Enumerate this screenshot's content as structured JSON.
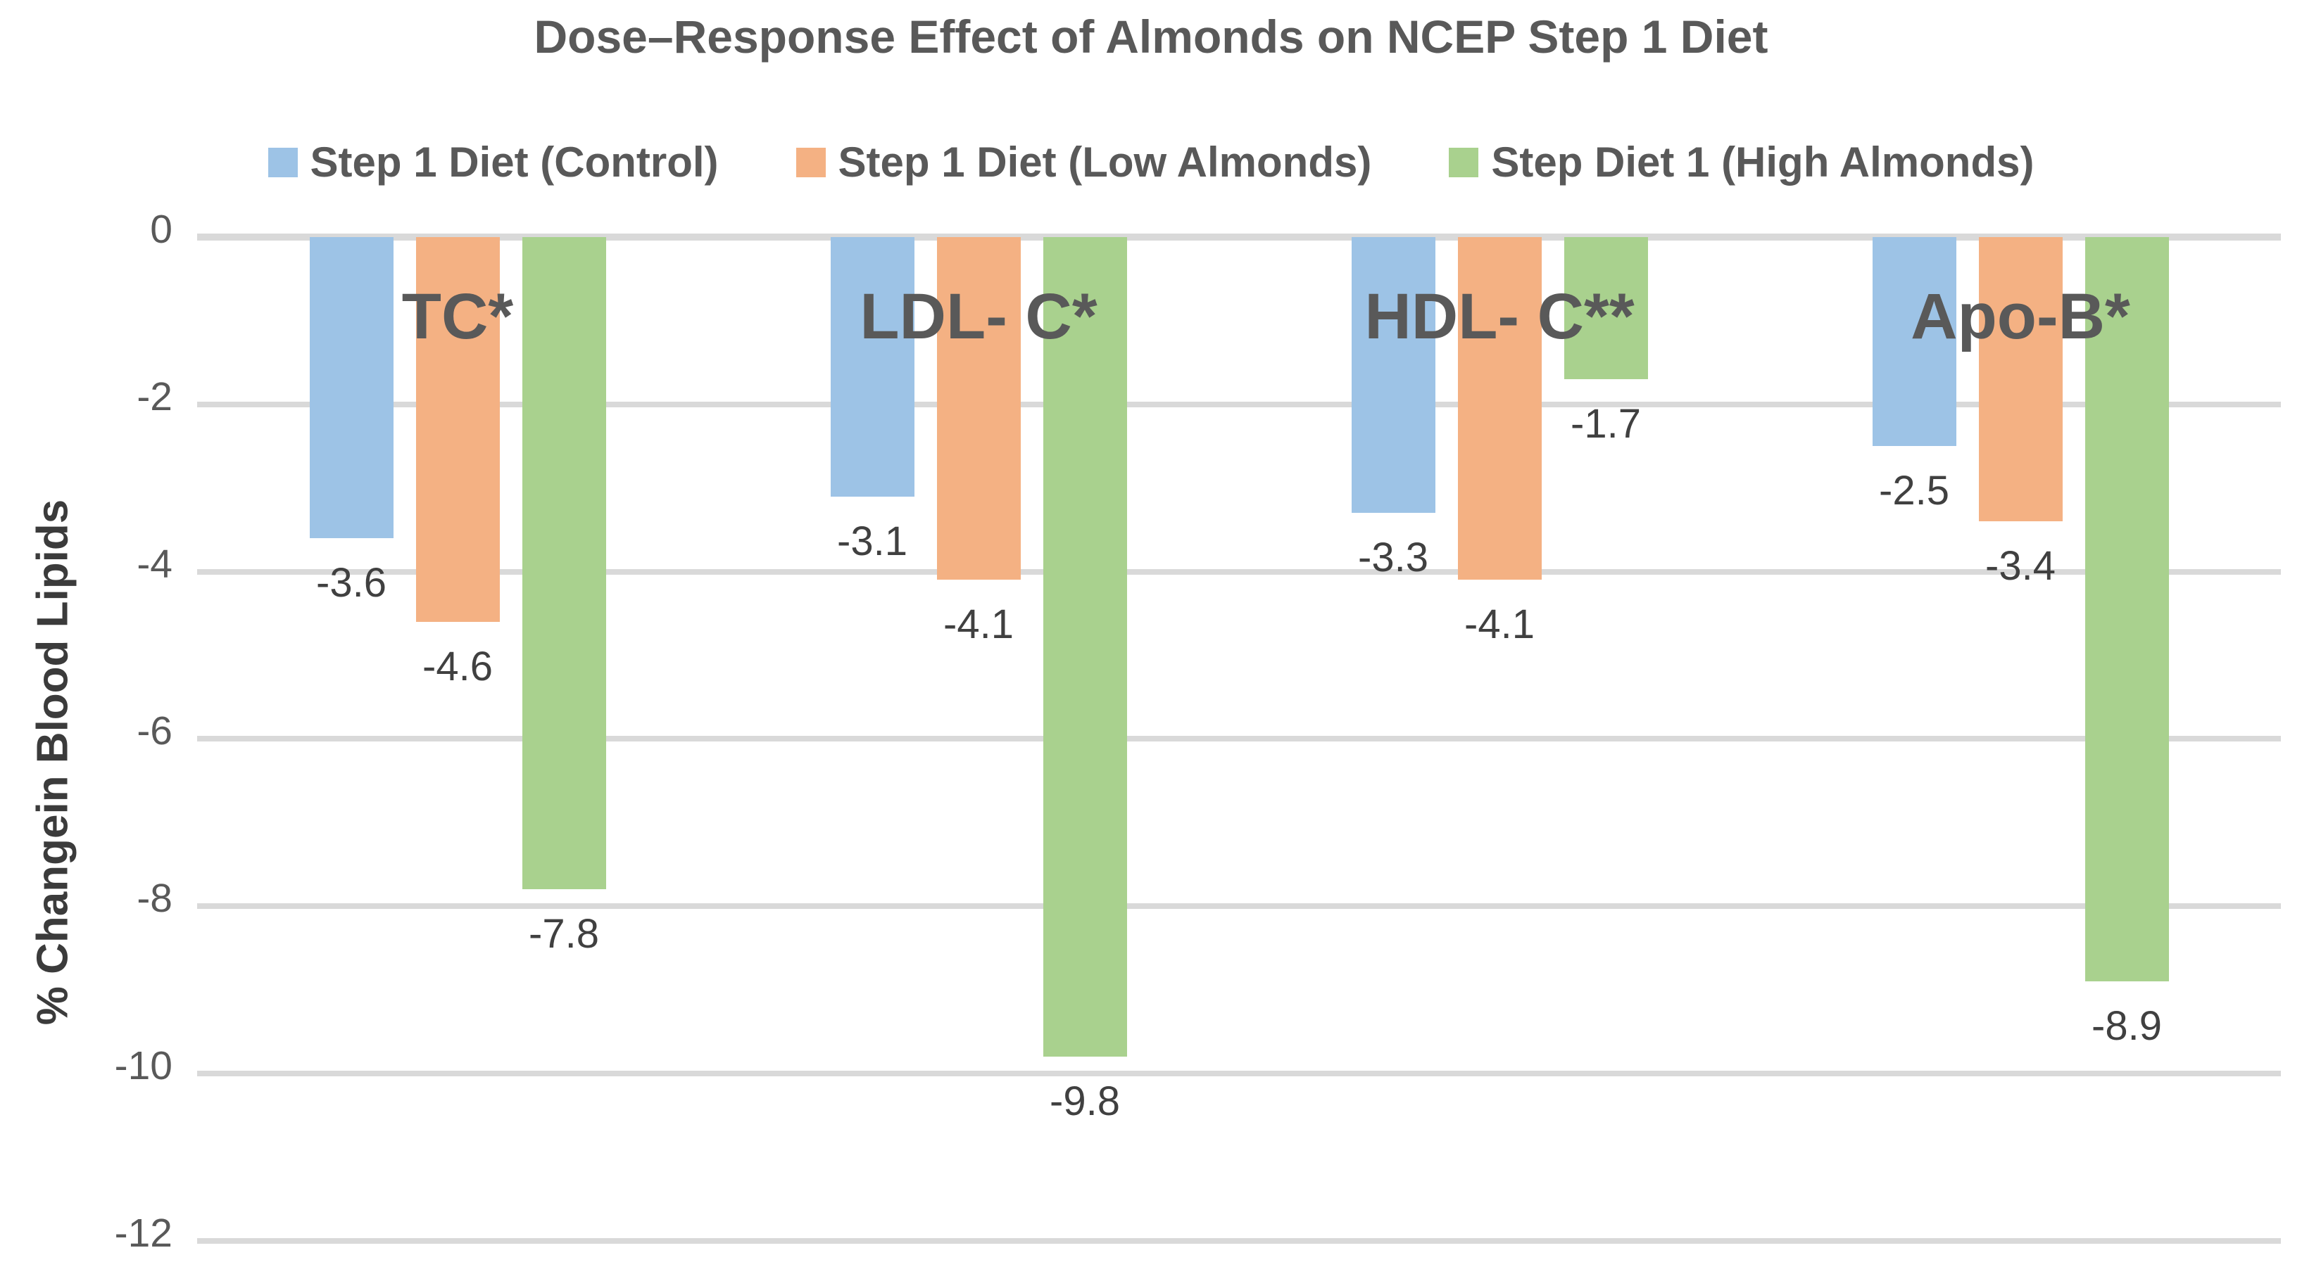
{
  "chart_data": {
    "type": "bar",
    "title": "Dose–Response Effect of Almonds on NCEP Step 1 Diet",
    "ylabel": "% Changein Blood Lipids",
    "xlabel": "",
    "categories": [
      "TC*",
      "LDL- C*",
      "HDL- C**",
      "Apo-B*"
    ],
    "series": [
      {
        "name": "Step 1 Diet (Control)",
        "color": "#9DC3E6",
        "values": [
          -3.6,
          -3.1,
          -3.3,
          -2.5
        ]
      },
      {
        "name": "Step 1 Diet (Low Almonds)",
        "color": "#F4B183",
        "values": [
          -4.6,
          -4.1,
          -4.1,
          -3.4
        ]
      },
      {
        "name": "Step Diet 1 (High Almonds)",
        "color": "#A9D18E",
        "values": [
          -7.8,
          -9.8,
          -1.7,
          -8.9
        ]
      }
    ],
    "y_ticks": [
      "0",
      "-2",
      "-4",
      "-6",
      "-8",
      "-10",
      "-12"
    ],
    "y_tick_values": [
      0,
      -2,
      -4,
      -6,
      -8,
      -10,
      -12
    ],
    "ylim": [
      -12,
      0
    ],
    "grid": true,
    "legend_position": "top",
    "bar_orientation": "vertical-negative"
  },
  "colors": {
    "gridline": "#d9d9d9",
    "title_text": "#595959",
    "tick_text": "#595959",
    "value_label_text": "#404040",
    "category_label_text": "#595959",
    "axis_title_text": "#3b3b3b",
    "background": "#ffffff"
  }
}
